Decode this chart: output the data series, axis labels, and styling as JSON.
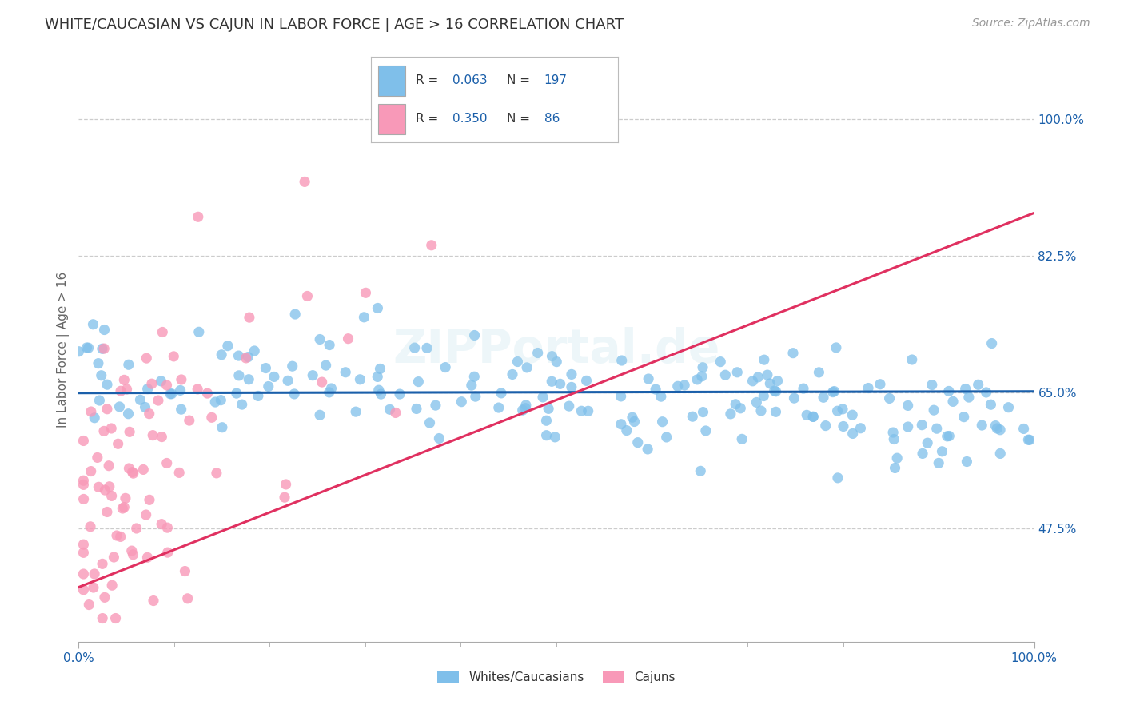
{
  "title": "WHITE/CAUCASIAN VS CAJUN IN LABOR FORCE | AGE > 16 CORRELATION CHART",
  "source": "Source: ZipAtlas.com",
  "ylabel": "In Labor Force | Age > 16",
  "xlim": [
    0.0,
    1.0
  ],
  "ylim": [
    0.33,
    1.08
  ],
  "yticks": [
    0.475,
    0.65,
    0.825,
    1.0
  ],
  "ytick_labels": [
    "47.5%",
    "65.0%",
    "82.5%",
    "100.0%"
  ],
  "xticks": [
    0.0,
    1.0
  ],
  "xtick_labels": [
    "0.0%",
    "100.0%"
  ],
  "blue_R": 0.063,
  "blue_N": 197,
  "pink_R": 0.35,
  "pink_N": 86,
  "blue_color": "#7fbfea",
  "pink_color": "#f899b8",
  "blue_line_color": "#1a5faa",
  "pink_line_color": "#e03060",
  "title_fontsize": 13,
  "legend_label_blue": "Whites/Caucasians",
  "legend_label_pink": "Cajuns",
  "background_color": "#ffffff",
  "grid_color": "#cccccc",
  "watermark": "ZIPPortal.de",
  "seed": 12345
}
